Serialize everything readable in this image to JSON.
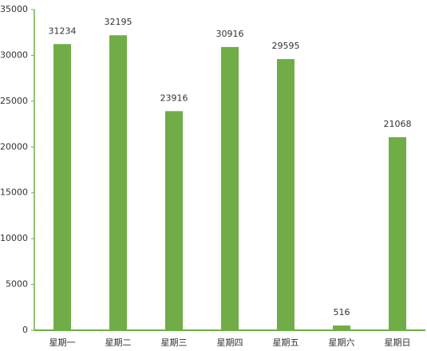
{
  "chart_data": {
    "type": "bar",
    "categories": [
      "星期一",
      "星期二",
      "星期三",
      "星期四",
      "星期五",
      "星期六",
      "星期日"
    ],
    "values": [
      31234,
      32195,
      23916,
      30916,
      29595,
      516,
      21068
    ],
    "color": "#70ad47",
    "ylim": [
      0,
      35000
    ],
    "yticks": [
      0,
      5000,
      10000,
      15000,
      20000,
      25000,
      30000,
      35000
    ],
    "grid": false,
    "data_labels": true
  }
}
